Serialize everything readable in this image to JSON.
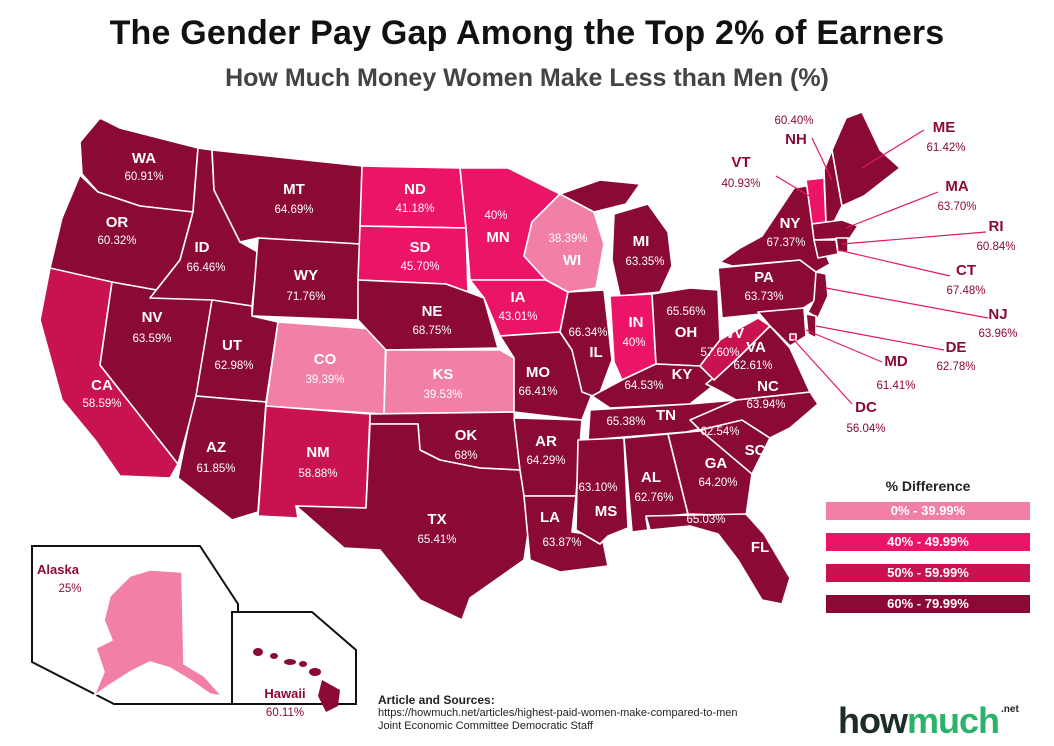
{
  "title": "The Gender Pay Gap Among the Top 2% of Earners",
  "subtitle": "How Much Money Women Make Less than Men (%)",
  "colors": {
    "band_0_39": "#f27fa8",
    "band_40_49": "#ec1466",
    "band_50_59": "#c8134f",
    "band_60_79": "#8b0a33"
  },
  "states": {
    "WA": {
      "abbr": "WA",
      "value": "60.91%"
    },
    "OR": {
      "abbr": "OR",
      "value": "60.32%"
    },
    "CA": {
      "abbr": "CA",
      "value": "58.59%"
    },
    "NV": {
      "abbr": "NV",
      "value": "63.59%"
    },
    "ID": {
      "abbr": "ID",
      "value": "66.46%"
    },
    "MT": {
      "abbr": "MT",
      "value": "64.69%"
    },
    "WY": {
      "abbr": "WY",
      "value": "71.76%"
    },
    "UT": {
      "abbr": "UT",
      "value": "62.98%"
    },
    "AZ": {
      "abbr": "AZ",
      "value": "61.85%"
    },
    "CO": {
      "abbr": "CO",
      "value": "39.39%"
    },
    "NM": {
      "abbr": "NM",
      "value": "58.88%"
    },
    "ND": {
      "abbr": "ND",
      "value": "41.18%"
    },
    "SD": {
      "abbr": "SD",
      "value": "45.70%"
    },
    "NE": {
      "abbr": "NE",
      "value": "68.75%"
    },
    "KS": {
      "abbr": "KS",
      "value": "39.53%"
    },
    "OK": {
      "abbr": "OK",
      "value": "68%"
    },
    "TX": {
      "abbr": "TX",
      "value": "65.41%"
    },
    "MN": {
      "abbr": "MN",
      "value": "40%"
    },
    "IA": {
      "abbr": "IA",
      "value": "43.01%"
    },
    "MO": {
      "abbr": "MO",
      "value": "66.41%"
    },
    "AR": {
      "abbr": "AR",
      "value": "64.29%"
    },
    "LA": {
      "abbr": "LA",
      "value": "63.87%"
    },
    "WI": {
      "abbr": "WI",
      "value": "38.39%"
    },
    "IL": {
      "abbr": "IL",
      "value": "66.34%"
    },
    "MI": {
      "abbr": "MI",
      "value": "63.35%"
    },
    "IN": {
      "abbr": "IN",
      "value": "40%"
    },
    "OH": {
      "abbr": "OH",
      "value": "65.56%"
    },
    "KY": {
      "abbr": "KY",
      "value": "64.53%"
    },
    "TN": {
      "abbr": "TN",
      "value": "65.38%"
    },
    "MS": {
      "abbr": "MS",
      "value": "63.10%"
    },
    "AL": {
      "abbr": "AL",
      "value": "62.76%"
    },
    "GA": {
      "abbr": "GA",
      "value": "64.20%"
    },
    "FL": {
      "abbr": "FL",
      "value": "65.03%"
    },
    "SC": {
      "abbr": "SC",
      "value": "62.54%"
    },
    "NC": {
      "abbr": "NC",
      "value": "63.94%"
    },
    "VA": {
      "abbr": "VA",
      "value": "62.61%"
    },
    "WV": {
      "abbr": "WV",
      "value": "57.60%"
    },
    "PA": {
      "abbr": "PA",
      "value": "63.73%"
    },
    "NY": {
      "abbr": "NY",
      "value": "67.37%"
    },
    "VT": {
      "abbr": "VT",
      "value": "40.93%"
    },
    "NH": {
      "abbr": "NH",
      "value": "60.40%"
    },
    "ME": {
      "abbr": "ME",
      "value": "61.42%"
    },
    "MA": {
      "abbr": "MA",
      "value": "63.70%"
    },
    "RI": {
      "abbr": "RI",
      "value": "60.84%"
    },
    "CT": {
      "abbr": "CT",
      "value": "67.48%"
    },
    "NJ": {
      "abbr": "NJ",
      "value": "63.96%"
    },
    "DE": {
      "abbr": "DE",
      "value": "62.78%"
    },
    "MD": {
      "abbr": "MD",
      "value": "61.41%"
    },
    "DC": {
      "abbr": "DC",
      "value": "56.04%"
    },
    "AK": {
      "abbr": "Alaska",
      "value": "25%"
    },
    "HI": {
      "abbr": "Hawaii",
      "value": "60.11%"
    }
  },
  "legend": {
    "title": "% Difference",
    "items": [
      {
        "label": "0% - 39.99%",
        "color": "#f27fa8"
      },
      {
        "label": "40% - 49.99%",
        "color": "#ec1466"
      },
      {
        "label": "50% - 59.99%",
        "color": "#c8134f"
      },
      {
        "label": "60% - 79.99%",
        "color": "#8b0a33"
      }
    ]
  },
  "sources": {
    "heading": "Article and Sources:",
    "url": "https://howmuch.net/articles/highest-paid-women-make-compared-to-men",
    "org": "Joint Economic Committee Democratic Staff"
  },
  "logo": {
    "part1": "how",
    "part2": "much",
    "suffix": ".net"
  }
}
